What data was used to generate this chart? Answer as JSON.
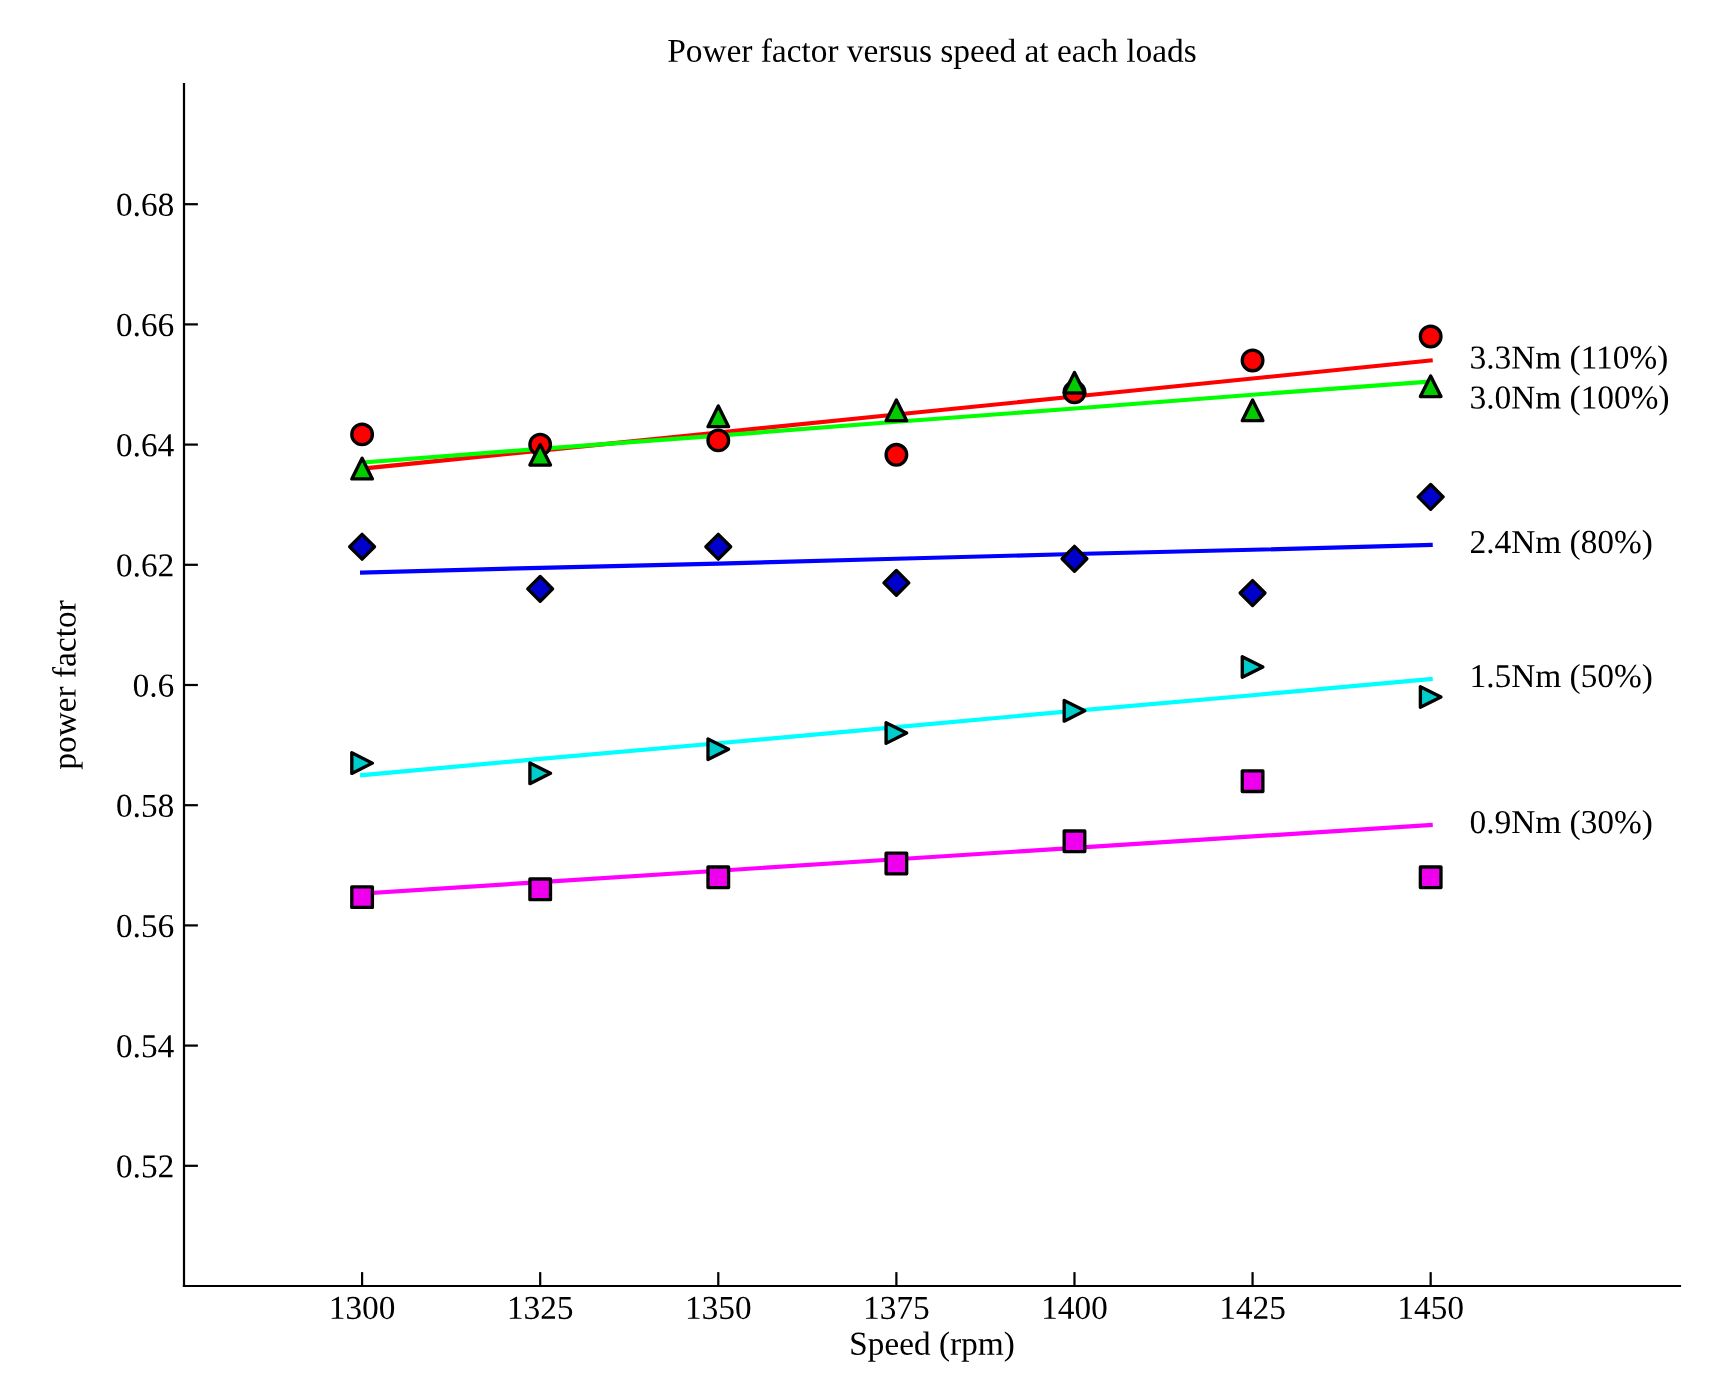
{
  "chart_data": {
    "type": "scatter",
    "title": "Power factor versus speed at each loads",
    "xlabel": "Speed (rpm)",
    "ylabel": "power factor",
    "x": [
      1300,
      1325,
      1350,
      1375,
      1400,
      1425,
      1450
    ],
    "xlim": [
      1275,
      1485
    ],
    "xticks": [
      1300,
      1325,
      1350,
      1375,
      1400,
      1425,
      1450
    ],
    "ylim": [
      0.5,
      0.7
    ],
    "yticks": [
      0.52,
      0.54,
      0.56,
      0.58,
      0.6,
      0.62,
      0.64,
      0.66,
      0.68
    ],
    "grid": false,
    "legend": false,
    "line_style": "solid",
    "series": [
      {
        "marker": "circle",
        "color": "#ff0000",
        "values": [
          0.6417,
          0.64,
          0.6407,
          0.6383,
          0.6487,
          0.654,
          0.658
        ]
      },
      {
        "marker": "triangle",
        "color": "#00cc00",
        "values": [
          0.636,
          0.6383,
          0.6447,
          0.6457,
          0.6503,
          0.6457,
          0.6497
        ]
      },
      {
        "marker": "diamond",
        "color": "#0000cc",
        "values": [
          0.623,
          0.616,
          0.623,
          0.617,
          0.621,
          0.6153,
          0.6313
        ]
      },
      {
        "marker": "triangle_right",
        "color": "#00cccc",
        "values": [
          0.587,
          0.5853,
          0.5893,
          0.592,
          0.5957,
          0.603,
          0.598
        ]
      },
      {
        "marker": "square",
        "color": "#ee00ee",
        "values": [
          0.5647,
          0.566,
          0.568,
          0.5703,
          0.574,
          0.584,
          0.568
        ]
      },
      {
        "type": "line",
        "name": "3.3Nm (110%)",
        "color": "#ff0000",
        "values": [
          0.636,
          0.639,
          0.642,
          0.645,
          0.648,
          0.651,
          0.654
        ]
      },
      {
        "type": "line",
        "name": "3.0Nm (100%)",
        "color": "#00ff00",
        "values": [
          0.637,
          0.6393,
          0.6415,
          0.6438,
          0.646,
          0.6483,
          0.6505
        ]
      },
      {
        "type": "line",
        "name": "2.4Nm (80%)",
        "color": "#0000ff",
        "values": [
          0.6187,
          0.6195,
          0.6202,
          0.621,
          0.6218,
          0.6225,
          0.6233
        ]
      },
      {
        "type": "line",
        "name": "1.5Nm (50%)",
        "color": "#00ffff",
        "values": [
          0.585,
          0.5877,
          0.5903,
          0.593,
          0.5957,
          0.5983,
          0.601
        ]
      },
      {
        "type": "line",
        "name": "0.9Nm (30%)",
        "color": "#ff00ff",
        "values": [
          0.5653,
          0.5672,
          0.5691,
          0.571,
          0.5729,
          0.5748,
          0.5767
        ]
      }
    ]
  }
}
